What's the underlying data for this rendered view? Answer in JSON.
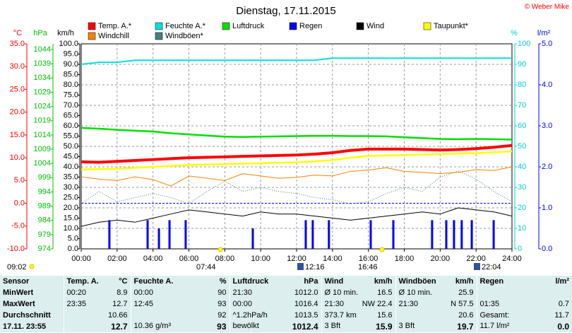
{
  "title": "Dienstag, 17.11.2015",
  "copyright": "© Weber Mike",
  "chart_data": {
    "type": "line",
    "grid": true,
    "x": [
      0,
      1,
      2,
      3,
      4,
      5,
      6,
      7,
      8,
      9,
      10,
      11,
      12,
      13,
      14,
      15,
      16,
      17,
      18,
      19,
      20,
      21,
      22,
      23,
      24
    ],
    "xlim": [
      0,
      24
    ],
    "xticks": [
      {
        "value": 0,
        "label": "00:00"
      },
      {
        "value": 2,
        "label": "02:00"
      },
      {
        "value": 4,
        "label": "04:00"
      },
      {
        "value": 6,
        "label": "06:00"
      },
      {
        "value": 8,
        "label": "08:00"
      },
      {
        "value": 10,
        "label": "10:00"
      },
      {
        "value": 12,
        "label": "12:00"
      },
      {
        "value": 14,
        "label": "14:00"
      },
      {
        "value": 16,
        "label": "16:00"
      },
      {
        "value": 18,
        "label": "18:00"
      },
      {
        "value": 20,
        "label": "20:00"
      },
      {
        "value": 22,
        "label": "22:00"
      },
      {
        "value": 24,
        "label": "24:00"
      }
    ],
    "axes": {
      "temp": {
        "label": "°C",
        "color": "#ff0000",
        "lim": [
          -10,
          35
        ],
        "ticks": [
          {
            "value": 35,
            "label": "35.0"
          },
          {
            "value": 30,
            "label": "30.0"
          },
          {
            "value": 25,
            "label": "25.0"
          },
          {
            "value": 20,
            "label": "20.0"
          },
          {
            "value": 15,
            "label": "15.0"
          },
          {
            "value": 10,
            "label": "10.0"
          },
          {
            "value": 5,
            "label": "5.0"
          },
          {
            "value": 0,
            "label": "0.0"
          },
          {
            "value": -5,
            "label": "-5.0"
          },
          {
            "value": -10,
            "label": "-10.0"
          }
        ]
      },
      "hpa": {
        "label": "hPa",
        "color": "#00c000",
        "lim": [
          974,
          1046
        ],
        "ticks": [
          1044,
          1039,
          1034,
          1029,
          1024,
          1019,
          1014,
          1009,
          1004,
          999,
          994,
          989,
          984,
          979,
          974
        ]
      },
      "kmh": {
        "label": "km/h",
        "color": "#000000",
        "lim": [
          0,
          100
        ],
        "ticks": [
          {
            "value": 100,
            "label": "100.0"
          },
          {
            "value": 95,
            "label": "95.0"
          },
          {
            "value": 90,
            "label": "90.0"
          },
          {
            "value": 85,
            "label": "85.0"
          },
          {
            "value": 80,
            "label": "80.0"
          },
          {
            "value": 75,
            "label": "75.0"
          },
          {
            "value": 70,
            "label": "70.0"
          },
          {
            "value": 65,
            "label": "65.0"
          },
          {
            "value": 60,
            "label": "60.0"
          },
          {
            "value": 55,
            "label": "55.0"
          },
          {
            "value": 50,
            "label": "50.0"
          },
          {
            "value": 45,
            "label": "45.0"
          },
          {
            "value": 40,
            "label": "40.0"
          },
          {
            "value": 35,
            "label": "35.0"
          },
          {
            "value": 30,
            "label": "30.0"
          },
          {
            "value": 25,
            "label": "25.0"
          },
          {
            "value": 20,
            "label": "20.0"
          },
          {
            "value": 15,
            "label": "15.0"
          },
          {
            "value": 10,
            "label": "10.0"
          },
          {
            "value": 5,
            "label": "5.0"
          },
          {
            "value": 0,
            "label": "0.0"
          }
        ]
      },
      "pct": {
        "label": "%",
        "color": "#00d0d0",
        "lim": [
          0,
          100
        ],
        "ticks": [
          100,
          90,
          80,
          70,
          60,
          50,
          40,
          30,
          20,
          10,
          0
        ]
      },
      "rain": {
        "label": "l/m²",
        "color": "#0000ff",
        "lim": [
          0,
          5
        ],
        "ticks": [
          {
            "value": 5,
            "label": "5.0"
          },
          {
            "value": 4,
            "label": "4.0"
          },
          {
            "value": 3,
            "label": "3.0"
          },
          {
            "value": 2,
            "label": "2.0"
          },
          {
            "value": 1,
            "label": "1.0"
          },
          {
            "value": 0,
            "label": "0.0"
          }
        ]
      }
    },
    "series": [
      {
        "name": "Temp. A.*",
        "color": "#ff0000",
        "axis": "temp",
        "values": [
          9.1,
          9.0,
          9.2,
          9.4,
          9.6,
          9.8,
          10.0,
          10.1,
          10.2,
          10.3,
          10.4,
          10.5,
          10.6,
          10.8,
          11.1,
          11.6,
          11.9,
          11.9,
          11.9,
          11.8,
          11.7,
          11.8,
          12.0,
          12.3,
          12.7
        ]
      },
      {
        "name": "Feuchte A.*",
        "color": "#00e0e0",
        "axis": "pct",
        "values": [
          90,
          91,
          91,
          92,
          92,
          92,
          92,
          92,
          92,
          92,
          92,
          92,
          92,
          92,
          93,
          93,
          93,
          93,
          93,
          93,
          93,
          93,
          93,
          93,
          93
        ]
      },
      {
        "name": "Luftdruck",
        "color": "#00e000",
        "axis": "hpa",
        "values": [
          1016.5,
          1016.2,
          1015.8,
          1015.5,
          1015.2,
          1014.6,
          1014.2,
          1013.8,
          1013.4,
          1013.3,
          1013.4,
          1013.5,
          1013.6,
          1013.7,
          1013.7,
          1013.6,
          1013.6,
          1013.5,
          1013.2,
          1012.9,
          1012.6,
          1012.5,
          1012.6,
          1012.5,
          1012.4
        ]
      },
      {
        "name": "Regen",
        "color": "#0000ff",
        "axis": "rain",
        "type": "bar",
        "x": [
          1.57,
          3.7,
          4.33,
          4.92,
          5.82,
          9.56,
          12.51,
          12.9,
          13.8,
          16.13,
          17.39,
          19.55,
          20.34,
          20.77,
          21.2,
          21.76,
          22.98
        ],
        "values": [
          0.7,
          0.7,
          0.5,
          0.7,
          0.7,
          0.5,
          0.7,
          0.7,
          0.7,
          0.7,
          0.7,
          0.7,
          0.7,
          0.7,
          0.7,
          0.7,
          0.7
        ]
      },
      {
        "name": "Wind",
        "color": "#000000",
        "axis": "kmh",
        "values": [
          11,
          13,
          14,
          13,
          15,
          17,
          19,
          18,
          17,
          16,
          18,
          17,
          17,
          16,
          15,
          14,
          15,
          16,
          17,
          18,
          17,
          20,
          19,
          18,
          16
        ]
      },
      {
        "name": "Taupunkt*",
        "color": "#ffff00",
        "axis": "temp",
        "values": [
          7.4,
          7.5,
          7.6,
          7.8,
          8.0,
          8.2,
          8.4,
          8.5,
          8.6,
          8.7,
          8.8,
          8.9,
          9.0,
          9.2,
          9.5,
          10.0,
          10.4,
          10.5,
          10.6,
          10.7,
          10.8,
          10.9,
          11.0,
          11.2,
          11.4
        ]
      },
      {
        "name": "Windchill",
        "color": "#ff8000",
        "axis": "temp",
        "values": [
          5.8,
          5.3,
          5.0,
          5.8,
          5.2,
          3.8,
          6.0,
          5.5,
          5.0,
          6.5,
          6.0,
          5.5,
          5.7,
          6.2,
          6.0,
          7.0,
          7.3,
          7.8,
          7.0,
          6.8,
          6.5,
          6.8,
          7.4,
          7.2,
          8.0
        ]
      },
      {
        "name": "Windböen*",
        "color": "#408080",
        "axis": "kmh",
        "values": [
          22,
          28,
          23,
          25,
          27,
          25,
          22,
          28,
          33,
          28,
          30,
          28,
          27,
          25,
          24,
          22,
          23,
          27,
          30,
          28,
          35,
          38,
          34,
          28,
          23
        ]
      }
    ]
  },
  "astro": [
    "09:02",
    "07:44",
    "12:16",
    "16:46",
    "22:04"
  ],
  "table": {
    "header": [
      {
        "left": "Sensor"
      },
      {
        "left": "Temp. A.",
        "right": "°C"
      },
      {
        "left": "Feuchte A.",
        "right": "%"
      },
      {
        "left": "Luftdruck",
        "right": "hPa"
      },
      {
        "left": "Wind",
        "right": "km/h"
      },
      {
        "left": "Windböen",
        "right": "km/h"
      },
      {
        "left": "Regen",
        "right": "l/m²"
      }
    ],
    "rows": [
      [
        {
          "left": "MinWert"
        },
        {
          "left": "00:20",
          "right": "8.9"
        },
        {
          "left": "00:00",
          "right": "90"
        },
        {
          "left": "21:30",
          "right": "1012.0"
        },
        {
          "left": "Ø 10 min.",
          "right": "16.5"
        },
        {
          "left": "Ø 10 min.",
          "right": "25.9"
        },
        {}
      ],
      [
        {
          "left": "MaxWert"
        },
        {
          "left": "23:35",
          "right": "12.7"
        },
        {
          "left": "12:45",
          "right": "93"
        },
        {
          "left": "00:00",
          "right": "1016.4"
        },
        {
          "left": "21:30",
          "right": "NW 22.4"
        },
        {
          "left": "21:30",
          "right": "N 57.5"
        },
        {
          "left": "01:35",
          "right": "0.7"
        }
      ],
      [
        {
          "left": "Durchschnitt"
        },
        {
          "right": "10.66"
        },
        {
          "right": "92"
        },
        {
          "left": "^1.2hPa/h",
          "right": "1013.5"
        },
        {
          "left": "373.7 km",
          "right": "15.6"
        },
        {
          "right": "20.6"
        },
        {
          "left": "Gesamt:",
          "right": "11.7"
        }
      ],
      [
        {
          "left": "17.11. 23:55"
        },
        {
          "right": "12.7"
        },
        {
          "left": "10.36 g/m³",
          "right": "93"
        },
        {
          "left": "bewölkt",
          "right": "1012.4"
        },
        {
          "left": "3 Bft",
          "right": "15.9"
        },
        {
          "left": "3 Bft",
          "right": "19.7"
        },
        {
          "left": "11.7 l/m²",
          "right": "0.0"
        }
      ]
    ]
  }
}
